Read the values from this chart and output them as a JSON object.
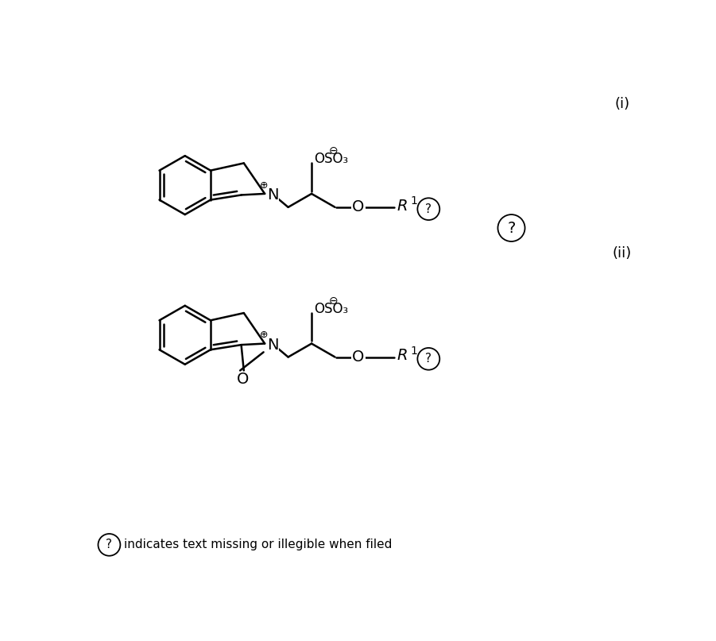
{
  "background_color": "#ffffff",
  "line_color": "#000000",
  "line_width": 1.8,
  "fig_width": 9.01,
  "fig_height": 8.07,
  "label_i": "(i)",
  "label_ii": "(ii)",
  "footnote": "indicates text missing or illegible when filed"
}
